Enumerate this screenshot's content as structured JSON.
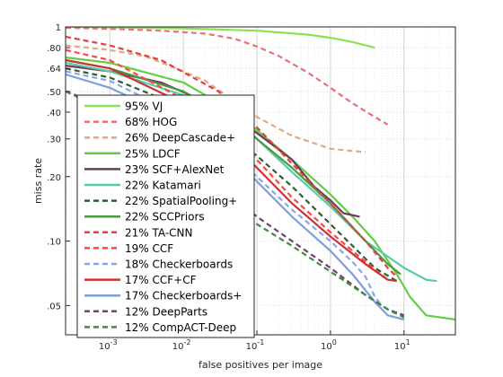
{
  "chart_data": {
    "type": "line",
    "title": "",
    "xlabel": "false positives per image",
    "ylabel": "miss rate",
    "xscale": "log",
    "yscale": "log",
    "xlim": [
      0.00025,
      50
    ],
    "ylim": [
      0.0365,
      1
    ],
    "grid": true,
    "legend_position": "bottom-left",
    "x_ticks": [
      {
        "value": 0.001,
        "base": "10",
        "exp": "-3"
      },
      {
        "value": 0.01,
        "base": "10",
        "exp": "-2"
      },
      {
        "value": 0.1,
        "base": "10",
        "exp": "-1"
      },
      {
        "value": 1,
        "base": "10",
        "exp": "0"
      },
      {
        "value": 10,
        "base": "10",
        "exp": "1"
      }
    ],
    "y_ticks": [
      {
        "value": 1,
        "label": "1"
      },
      {
        "value": 0.8,
        "label": ".80"
      },
      {
        "value": 0.64,
        "label": ".64"
      },
      {
        "value": 0.5,
        "label": ".50"
      },
      {
        "value": 0.4,
        "label": ".40"
      },
      {
        "value": 0.3,
        "label": ".30"
      },
      {
        "value": 0.2,
        "label": ".20"
      },
      {
        "value": 0.1,
        "label": ".10"
      },
      {
        "value": 0.05,
        "label": ".05"
      }
    ],
    "series": [
      {
        "name": "95% VJ",
        "color": "#8fe050",
        "dash": "solid",
        "points": [
          [
            0.00025,
            1.0
          ],
          [
            0.01,
            0.985
          ],
          [
            0.1,
            0.96
          ],
          [
            0.5,
            0.92
          ],
          [
            1,
            0.89
          ],
          [
            2,
            0.85
          ],
          [
            4,
            0.8
          ]
        ]
      },
      {
        "name": "68% HOG",
        "color": "#e8707a",
        "dash": "dashed",
        "points": [
          [
            0.00025,
            0.99
          ],
          [
            0.001,
            0.98
          ],
          [
            0.005,
            0.96
          ],
          [
            0.02,
            0.93
          ],
          [
            0.05,
            0.88
          ],
          [
            0.1,
            0.81
          ],
          [
            0.2,
            0.73
          ],
          [
            0.5,
            0.61
          ],
          [
            1,
            0.52
          ],
          [
            2,
            0.44
          ],
          [
            4,
            0.38
          ],
          [
            6,
            0.35
          ]
        ]
      },
      {
        "name": "26% DeepCascade+",
        "color": "#e0aa84",
        "dash": "dashed",
        "points": [
          [
            0.00025,
            0.82
          ],
          [
            0.001,
            0.78
          ],
          [
            0.003,
            0.73
          ],
          [
            0.008,
            0.64
          ],
          [
            0.02,
            0.56
          ],
          [
            0.06,
            0.43
          ],
          [
            0.1,
            0.38
          ],
          [
            0.3,
            0.31
          ],
          [
            1,
            0.27
          ],
          [
            3,
            0.26
          ]
        ]
      },
      {
        "name": "25% LDCF",
        "color": "#66cc44",
        "dash": "solid",
        "points": [
          [
            0.00025,
            0.72
          ],
          [
            0.001,
            0.68
          ],
          [
            0.01,
            0.55
          ],
          [
            0.05,
            0.4
          ],
          [
            0.1,
            0.33
          ],
          [
            0.3,
            0.24
          ],
          [
            1,
            0.165
          ],
          [
            2,
            0.13
          ],
          [
            4,
            0.1
          ],
          [
            8,
            0.07
          ],
          [
            12,
            0.055
          ],
          [
            20,
            0.045
          ],
          [
            50,
            0.043
          ]
        ]
      },
      {
        "name": "23% SCF+AlexNet",
        "color": "#6e3c5a",
        "dash": "solid",
        "points": [
          [
            0.00025,
            0.66
          ],
          [
            0.001,
            0.62
          ],
          [
            0.005,
            0.55
          ],
          [
            0.03,
            0.42
          ],
          [
            0.1,
            0.32
          ],
          [
            0.3,
            0.24
          ],
          [
            0.6,
            0.18
          ],
          [
            1,
            0.155
          ],
          [
            1.5,
            0.135
          ],
          [
            2.5,
            0.13
          ]
        ]
      },
      {
        "name": "22% Katamari",
        "color": "#55ccaa",
        "dash": "solid",
        "points": [
          [
            0.00025,
            0.68
          ],
          [
            0.001,
            0.62
          ],
          [
            0.01,
            0.48
          ],
          [
            0.05,
            0.36
          ],
          [
            0.1,
            0.3
          ],
          [
            0.3,
            0.21
          ],
          [
            1,
            0.145
          ],
          [
            3,
            0.1
          ],
          [
            10,
            0.075
          ],
          [
            20,
            0.066
          ],
          [
            28,
            0.065
          ]
        ]
      },
      {
        "name": "22% SpatialPooling+",
        "color": "#2e5e2e",
        "dash": "dashed",
        "points": [
          [
            0.00025,
            0.64
          ],
          [
            0.001,
            0.58
          ],
          [
            0.01,
            0.42
          ],
          [
            0.05,
            0.3
          ],
          [
            0.1,
            0.25
          ],
          [
            0.3,
            0.18
          ],
          [
            1,
            0.12
          ],
          [
            2,
            0.095
          ],
          [
            4,
            0.075
          ],
          [
            8,
            0.065
          ]
        ]
      },
      {
        "name": "22% SCCPriors",
        "color": "#4a9a3e",
        "dash": "solid",
        "points": [
          [
            0.00025,
            0.7
          ],
          [
            0.001,
            0.64
          ],
          [
            0.01,
            0.5
          ],
          [
            0.05,
            0.37
          ],
          [
            0.1,
            0.3
          ],
          [
            0.3,
            0.22
          ],
          [
            1,
            0.15
          ],
          [
            3,
            0.1
          ],
          [
            6,
            0.078
          ],
          [
            9,
            0.07
          ]
        ]
      },
      {
        "name": "21% TA-CNN",
        "color": "#e04040",
        "dash": "dashed",
        "points": [
          [
            0.00025,
            0.9
          ],
          [
            0.001,
            0.82
          ],
          [
            0.005,
            0.7
          ],
          [
            0.03,
            0.5
          ],
          [
            0.1,
            0.34
          ],
          [
            0.3,
            0.23
          ],
          [
            1,
            0.15
          ],
          [
            3,
            0.1
          ],
          [
            6,
            0.075
          ],
          [
            8,
            0.068
          ]
        ]
      },
      {
        "name": "19% CCF",
        "color": "#ff4444",
        "dash": "dashed",
        "points": [
          [
            0.00025,
            0.78
          ],
          [
            0.001,
            0.7
          ],
          [
            0.01,
            0.46
          ],
          [
            0.05,
            0.3
          ],
          [
            0.1,
            0.24
          ],
          [
            0.3,
            0.16
          ],
          [
            1,
            0.11
          ],
          [
            3,
            0.08
          ],
          [
            6,
            0.066
          ]
        ]
      },
      {
        "name": "18% Checkerboards",
        "color": "#8aa6e8",
        "dash": "dashed",
        "points": [
          [
            0.00025,
            0.62
          ],
          [
            0.001,
            0.56
          ],
          [
            0.01,
            0.38
          ],
          [
            0.05,
            0.25
          ],
          [
            0.1,
            0.2
          ],
          [
            0.3,
            0.14
          ],
          [
            1,
            0.1
          ],
          [
            2,
            0.08
          ],
          [
            3,
            0.068
          ],
          [
            4,
            0.055
          ],
          [
            5,
            0.05
          ]
        ]
      },
      {
        "name": "17% CCF+CF",
        "color": "#cc3333",
        "dash": "solid",
        "points": [
          [
            0.00025,
            0.7
          ],
          [
            0.001,
            0.64
          ],
          [
            0.01,
            0.44
          ],
          [
            0.05,
            0.28
          ],
          [
            0.1,
            0.22
          ],
          [
            0.3,
            0.15
          ],
          [
            1,
            0.105
          ],
          [
            3,
            0.078
          ],
          [
            6,
            0.066
          ],
          [
            8,
            0.065
          ]
        ]
      },
      {
        "name": "17% Checkerboards+",
        "color": "#7e9ee0",
        "dash": "solid",
        "points": [
          [
            0.00025,
            0.6
          ],
          [
            0.001,
            0.52
          ],
          [
            0.01,
            0.36
          ],
          [
            0.05,
            0.24
          ],
          [
            0.1,
            0.19
          ],
          [
            0.3,
            0.13
          ],
          [
            1,
            0.09
          ],
          [
            2,
            0.07
          ],
          [
            4,
            0.052
          ],
          [
            6,
            0.045
          ],
          [
            10,
            0.043
          ]
        ]
      },
      {
        "name": "12% DeepParts",
        "color": "#7a3e6e",
        "dash": "dashed",
        "points": [
          [
            0.00025,
            0.5
          ],
          [
            0.001,
            0.42
          ],
          [
            0.01,
            0.25
          ],
          [
            0.05,
            0.16
          ],
          [
            0.1,
            0.13
          ],
          [
            0.3,
            0.1
          ],
          [
            1,
            0.075
          ],
          [
            3,
            0.056
          ],
          [
            6,
            0.048
          ],
          [
            10,
            0.045
          ]
        ]
      },
      {
        "name": "12% CompACT-Deep",
        "color": "#3e8a3e",
        "dash": "dashed",
        "points": [
          [
            0.00025,
            0.5
          ],
          [
            0.001,
            0.4
          ],
          [
            0.01,
            0.24
          ],
          [
            0.05,
            0.15
          ],
          [
            0.1,
            0.12
          ],
          [
            0.3,
            0.095
          ],
          [
            1,
            0.072
          ],
          [
            3,
            0.056
          ],
          [
            6,
            0.048
          ],
          [
            10,
            0.044
          ]
        ]
      }
    ]
  }
}
